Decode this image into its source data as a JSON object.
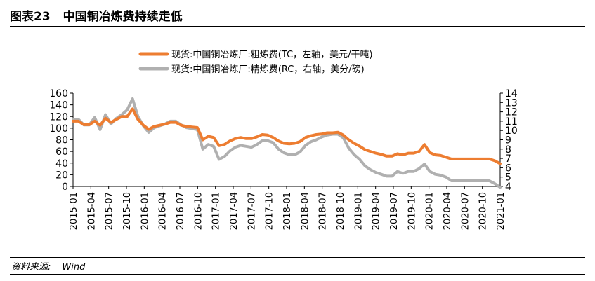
{
  "header": {
    "figure_label": "图表23",
    "title": "中国铜冶炼费持续走低"
  },
  "source": {
    "label": "资料来源:",
    "value": "Wind"
  },
  "chart_data": {
    "type": "line",
    "x_ticks": [
      "2015-01",
      "2015-04",
      "2015-07",
      "2015-10",
      "2016-01",
      "2016-04",
      "2016-07",
      "2016-10",
      "2017-01",
      "2017-04",
      "2017-07",
      "2017-10",
      "2018-01",
      "2018-04",
      "2018-07",
      "2018-10",
      "2019-01",
      "2019-04",
      "2019-07",
      "2019-10",
      "2020-01",
      "2020-04",
      "2020-07",
      "2020-10",
      "2021-01"
    ],
    "left_axis": {
      "min": 0,
      "max": 160,
      "ticks": [
        0,
        20,
        40,
        60,
        80,
        100,
        120,
        140,
        160
      ]
    },
    "right_axis": {
      "min": 4,
      "max": 14,
      "ticks": [
        4,
        5,
        6,
        7,
        8,
        9,
        10,
        11,
        12,
        13,
        14
      ]
    },
    "series": [
      {
        "name": "现货:中国铜冶炼厂:粗炼费(TC，左轴，美元/干吨)",
        "axis": "left",
        "color": "#ED7D31",
        "values": [
          112,
          112,
          106,
          106,
          112,
          105,
          117,
          110,
          115,
          120,
          120,
          133,
          115,
          105,
          98,
          103,
          105,
          107,
          110,
          110,
          105,
          103,
          102,
          101,
          80,
          86,
          84,
          70,
          72,
          78,
          82,
          84,
          82,
          82,
          85,
          89,
          88,
          84,
          78,
          74,
          73,
          74,
          77,
          84,
          87,
          89,
          90,
          92,
          92,
          93,
          88,
          80,
          74,
          69,
          63,
          60,
          57,
          55,
          52,
          52,
          56,
          54,
          57,
          57,
          60,
          72,
          58,
          54,
          53,
          50,
          47,
          47,
          47,
          47,
          47,
          47,
          47,
          47,
          44,
          39
        ]
      },
      {
        "name": "现货:中国铜冶炼厂:精炼费(RC，右轴，美分/磅)",
        "axis": "right",
        "color": "#B0B0B0",
        "values": [
          11.2,
          11.2,
          10.6,
          10.6,
          11.4,
          10.1,
          11.7,
          10.7,
          11.3,
          11.7,
          12.2,
          13.4,
          11.5,
          10.5,
          9.8,
          10.3,
          10.5,
          10.7,
          11,
          11,
          10.6,
          10.3,
          10.2,
          10.1,
          8,
          8.5,
          8.3,
          6.9,
          7.2,
          7.8,
          8.2,
          8.4,
          8.3,
          8.2,
          8.5,
          8.9,
          8.9,
          8.7,
          8,
          7.6,
          7.4,
          7.4,
          7.7,
          8.4,
          8.8,
          9,
          9.3,
          9.5,
          9.6,
          9.6,
          9.2,
          8.1,
          7.4,
          6.9,
          6.2,
          5.8,
          5.5,
          5.3,
          5.1,
          5.1,
          5.6,
          5.4,
          5.6,
          5.6,
          5.9,
          6.4,
          5.6,
          5.3,
          5.2,
          5,
          4.6,
          4.6,
          4.6,
          4.6,
          4.6,
          4.6,
          4.6,
          4.6,
          4.3,
          3.9
        ]
      }
    ]
  }
}
